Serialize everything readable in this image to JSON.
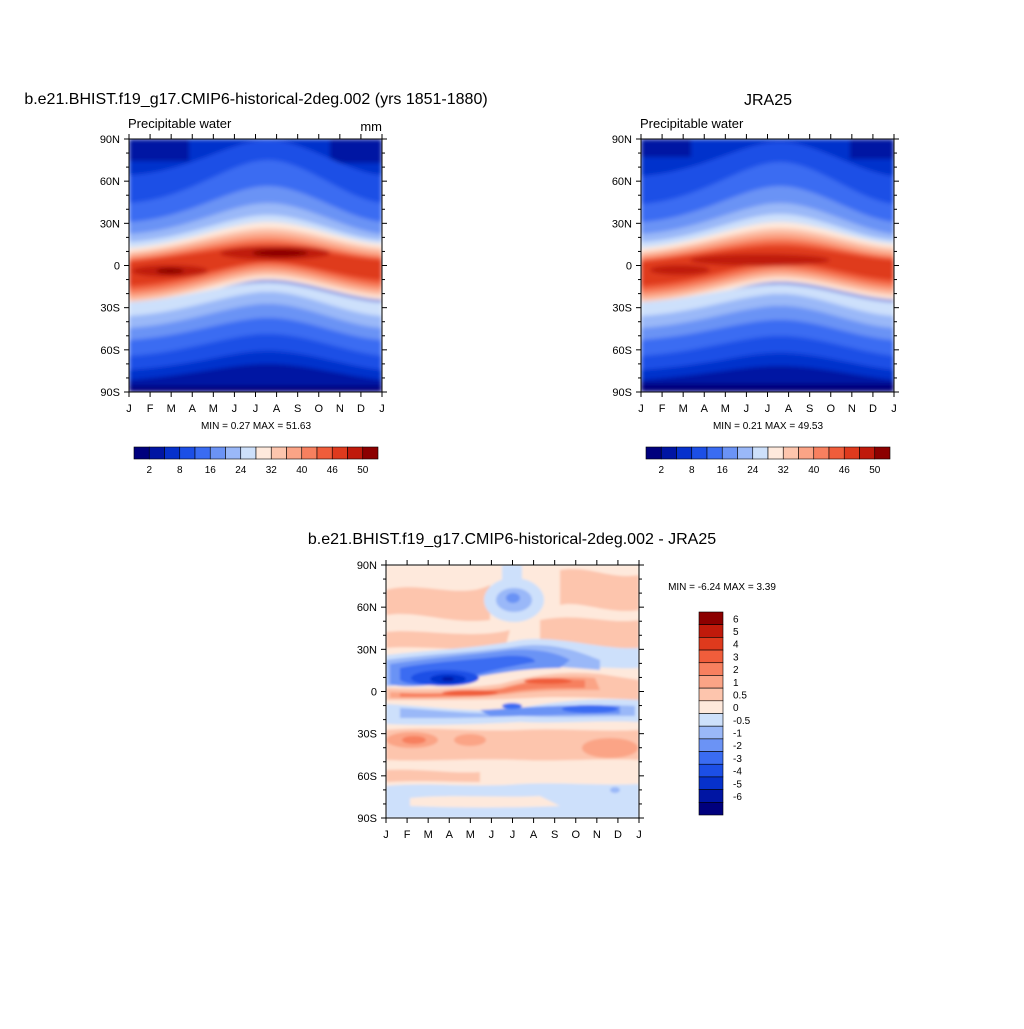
{
  "colors": {
    "model_scale": [
      "#00007d",
      "#0015a3",
      "#0631cc",
      "#1c4fe6",
      "#3a6cf2",
      "#6b93f5",
      "#9ab8f8",
      "#cde0fb",
      "#fee9dc",
      "#fdc5ad",
      "#fba486",
      "#f7805f",
      "#f05d3b",
      "#df3a1d",
      "#c01a0b",
      "#8c0000"
    ],
    "diff_scale": [
      "#00007d",
      "#0015a3",
      "#0631cc",
      "#1c4fe6",
      "#3a6cf2",
      "#6b93f5",
      "#9ab8f8",
      "#cde0fb",
      "#fee9dc",
      "#fdc5ad",
      "#fba486",
      "#f7805f",
      "#f05d3b",
      "#df3a1d",
      "#c01a0b",
      "#8c0000"
    ]
  },
  "chart_data": [
    {
      "type": "heatmap",
      "name": "model",
      "title": "b.e21.BHIST.f19_g17.CMIP6-historical-2deg.002 (yrs 1851-1880)",
      "subtitle": "Precipitable water",
      "units": "mm",
      "x_ticks": [
        "J",
        "F",
        "M",
        "A",
        "M",
        "J",
        "J",
        "A",
        "S",
        "O",
        "N",
        "D",
        "J"
      ],
      "y_ticks": [
        "90N",
        "60N",
        "30N",
        "0",
        "30S",
        "60S",
        "90S"
      ],
      "y_values": [
        90,
        60,
        30,
        0,
        -30,
        -60,
        -90
      ],
      "min_max_text": "MIN =   0.27 MAX =  51.63",
      "min": 0.27,
      "max": 51.63,
      "colorbar_labels": [
        "2",
        "8",
        "16",
        "24",
        "32",
        "40",
        "46",
        "50"
      ],
      "colorbar_levels": [
        2,
        4,
        8,
        12,
        16,
        20,
        24,
        28,
        32,
        36,
        40,
        43,
        46,
        48,
        50
      ]
    },
    {
      "type": "heatmap",
      "name": "obs",
      "title": "JRA25",
      "subtitle": "Precipitable water",
      "x_ticks": [
        "J",
        "F",
        "M",
        "A",
        "M",
        "J",
        "J",
        "A",
        "S",
        "O",
        "N",
        "D",
        "J"
      ],
      "y_ticks": [
        "90N",
        "60N",
        "30N",
        "0",
        "30S",
        "60S",
        "90S"
      ],
      "y_values": [
        90,
        60,
        30,
        0,
        -30,
        -60,
        -90
      ],
      "min_max_text": "MIN =   0.21 MAX =  49.53",
      "min": 0.21,
      "max": 49.53,
      "colorbar_labels": [
        "2",
        "8",
        "16",
        "24",
        "32",
        "40",
        "46",
        "50"
      ],
      "colorbar_levels": [
        2,
        4,
        8,
        12,
        16,
        20,
        24,
        28,
        32,
        36,
        40,
        43,
        46,
        48,
        50
      ]
    },
    {
      "type": "heatmap",
      "name": "difference",
      "title": "b.e21.BHIST.f19_g17.CMIP6-historical-2deg.002 - JRA25",
      "x_ticks": [
        "J",
        "F",
        "M",
        "A",
        "M",
        "J",
        "J",
        "A",
        "S",
        "O",
        "N",
        "D",
        "J"
      ],
      "y_ticks": [
        "90N",
        "60N",
        "30N",
        "0",
        "30S",
        "60S",
        "90S"
      ],
      "y_values": [
        90,
        60,
        30,
        0,
        -30,
        -60,
        -90
      ],
      "min_max_text": "MIN =  -6.24 MAX =   3.39",
      "min": -6.24,
      "max": 3.39,
      "colorbar_labels": [
        "6",
        "5",
        "4",
        "3",
        "2",
        "1",
        "0.5",
        "0",
        "-0.5",
        "-1",
        "-2",
        "-3",
        "-4",
        "-5",
        "-6"
      ],
      "colorbar_levels": [
        6,
        5,
        4,
        3,
        2,
        1,
        0.5,
        0,
        -0.5,
        -1,
        -2,
        -3,
        -4,
        -5,
        -6
      ]
    }
  ]
}
